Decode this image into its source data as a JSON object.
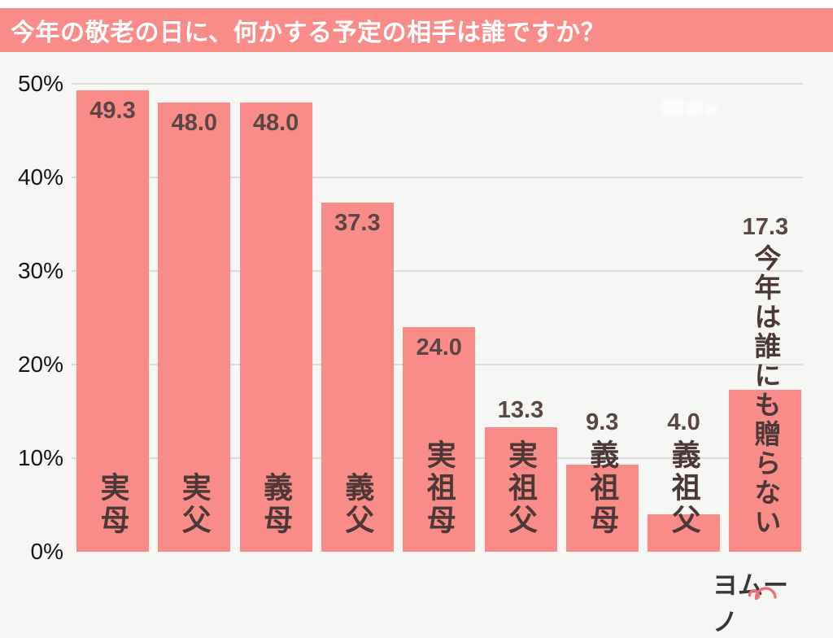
{
  "title": "今年の敬老の日に、何かする予定の相手は誰ですか？",
  "colors": {
    "banner": "#f98c88",
    "bar": "#f98c88",
    "background": "#f6f6f5",
    "grid": "#dcdcdc",
    "axis_label": "#161616",
    "value_label": "#5a4745",
    "category_label": "#4c3937",
    "logo_text": "#3c3737",
    "logo_accent": "#ef6e79"
  },
  "y_axis": {
    "ticks": [
      "50%",
      "40%",
      "30%",
      "20%",
      "10%",
      "0%"
    ],
    "tick_values": [
      50,
      40,
      30,
      20,
      10,
      0
    ]
  },
  "chart_data": {
    "type": "bar",
    "title": "今年の敬老の日に、何かする予定の相手は誰ですか？",
    "categories": [
      "実母",
      "実父",
      "義母",
      "義父",
      "実祖母",
      "実祖父",
      "義祖母",
      "義祖父",
      "今年は誰にも贈らない"
    ],
    "values": [
      49.3,
      48.0,
      48.0,
      37.3,
      24.0,
      13.3,
      9.3,
      4.0,
      17.3
    ],
    "value_labels": [
      "49.3",
      "48.0",
      "48.0",
      "37.3",
      "24.0",
      "13.3",
      "9.3",
      "4.0",
      "17.3"
    ],
    "xlabel": "",
    "ylabel": "",
    "ylim": [
      0,
      50
    ],
    "grid": true,
    "legend": false,
    "bar_label_position_rule": "value labels drawn inside bar top when value >= 20, otherwise above bar / above category text"
  },
  "logo": {
    "text": "ヨムーノ"
  }
}
